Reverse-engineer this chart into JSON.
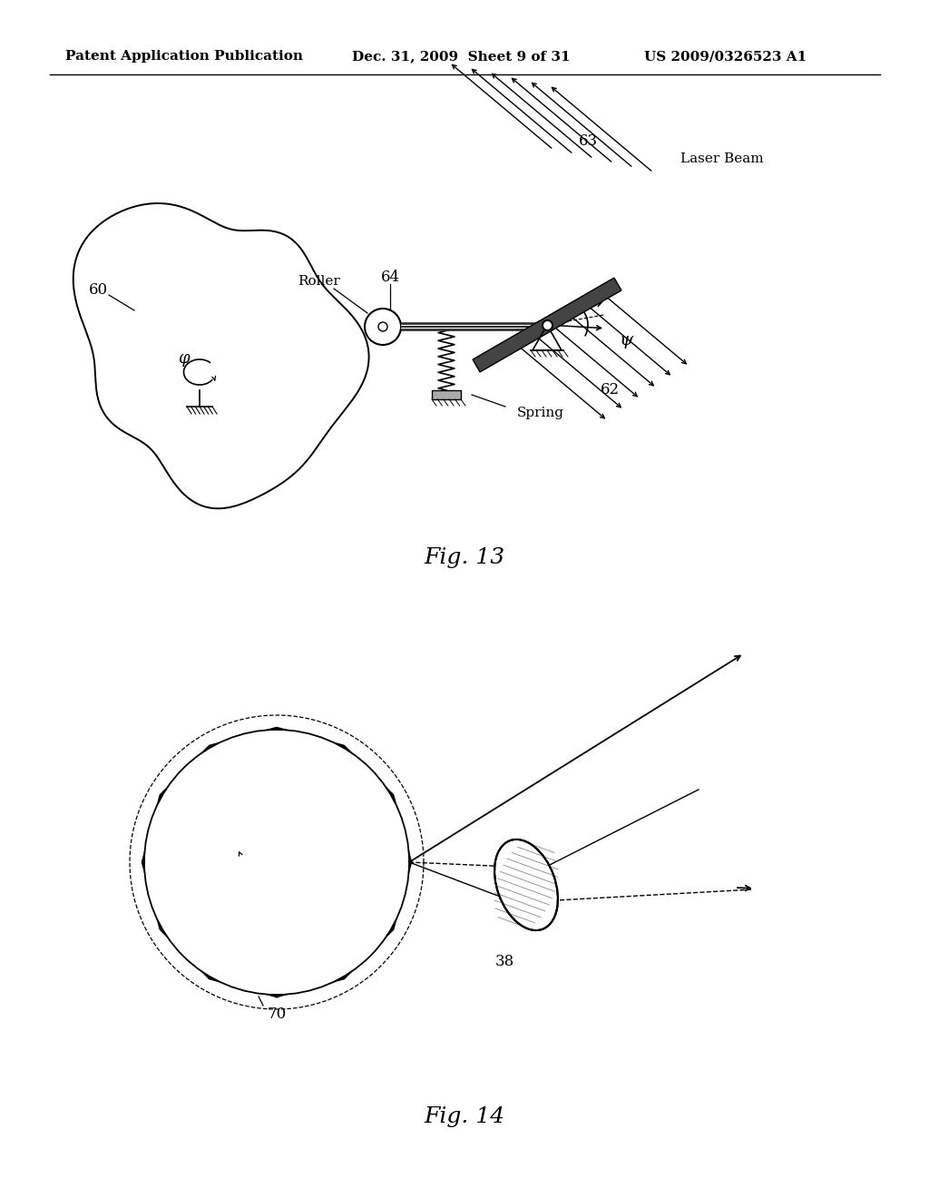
{
  "header_left": "Patent Application Publication",
  "header_mid": "Dec. 31, 2009  Sheet 9 of 31",
  "header_right": "US 2009/0326523 A1",
  "fig13_caption": "Fig. 13",
  "fig14_caption": "Fig. 14",
  "bg_color": "#ffffff",
  "line_color": "#000000",
  "label_60": "60",
  "label_62": "62",
  "label_63": "63",
  "label_64": "64",
  "label_laser": "Laser Beam",
  "label_roller": "Roller",
  "label_spring": "Spring",
  "label_psi": "ψ",
  "label_phi": "φ",
  "label_70": "70",
  "label_38": "38"
}
